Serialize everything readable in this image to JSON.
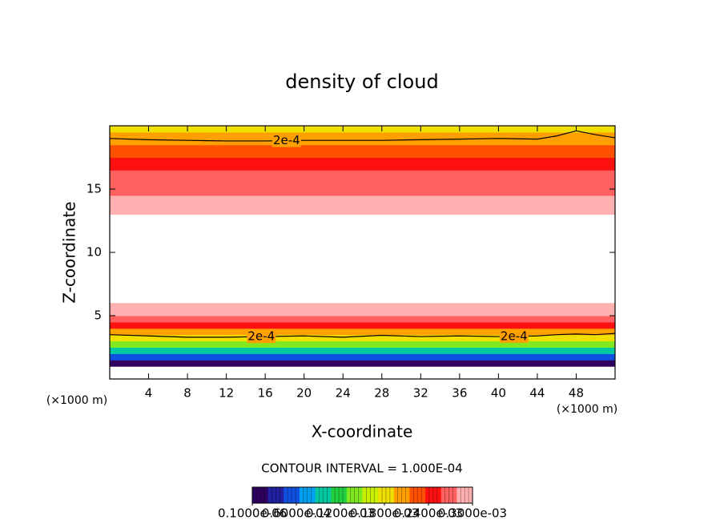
{
  "chart_data": {
    "type": "contour",
    "title": "density of cloud",
    "xlabel": "X-coordinate",
    "ylabel": "Z-coordinate",
    "x_unit": "(×1000 m)",
    "y_unit": "(×1000 m)",
    "xlim": [
      0,
      52
    ],
    "ylim": [
      0,
      20
    ],
    "xticks": [
      4,
      8,
      12,
      16,
      20,
      24,
      28,
      32,
      36,
      40,
      44,
      48
    ],
    "yticks": [
      5,
      10,
      15
    ],
    "profile": {
      "z": [
        0.25,
        0.75,
        1.25,
        1.75,
        2.25,
        2.75,
        3.25,
        3.75,
        4.25,
        4.75,
        5.25,
        5.75,
        6.25,
        6.75,
        7.25,
        7.75,
        8.25,
        8.75,
        9.25,
        9.75,
        10.25,
        10.75,
        11.25,
        11.75,
        12.25,
        12.75,
        13.25,
        13.75,
        14.25,
        14.75,
        15.25,
        15.75,
        16.25,
        16.75,
        17.25,
        17.75,
        18.25,
        18.75,
        19.25,
        19.75
      ],
      "values": [
        null,
        null,
        2e-05,
        5e-05,
        9e-05,
        0.00014,
        0.00018,
        0.00021,
        0.00024,
        0.00027,
        0.00029,
        0.0003,
        null,
        null,
        null,
        null,
        null,
        null,
        null,
        null,
        null,
        null,
        null,
        null,
        null,
        null,
        0.0003,
        0.00029,
        0.00028,
        0.000275,
        0.000275,
        0.00027,
        0.00026,
        0.00025,
        0.00024,
        0.00023,
        0.00022,
        0.00021,
        0.0002,
        0.00019
      ]
    },
    "contours": [
      {
        "label": "2e-4",
        "color": "#000000",
        "x": [
          0,
          4,
          8,
          12,
          16,
          20,
          24,
          28,
          32,
          36,
          40,
          44,
          46,
          48,
          50,
          52
        ],
        "z": [
          19.0,
          18.9,
          18.85,
          18.8,
          18.8,
          18.85,
          18.85,
          18.85,
          18.9,
          18.95,
          19.0,
          18.95,
          19.2,
          19.6,
          19.3,
          19.05
        ]
      },
      {
        "label": "2e-4",
        "color": "#000000",
        "x": [
          0,
          4,
          8,
          12,
          16,
          20,
          24,
          28,
          32,
          36,
          40,
          44,
          46,
          48,
          50,
          52
        ],
        "z": [
          3.5,
          3.4,
          3.3,
          3.3,
          3.35,
          3.4,
          3.3,
          3.45,
          3.35,
          3.4,
          3.35,
          3.4,
          3.5,
          3.55,
          3.5,
          3.6
        ]
      }
    ],
    "contour_interval": "CONTOUR INTERVAL = 1.000E-04",
    "colorbar": {
      "clim": [
        0,
        0.0003
      ],
      "colors": [
        "#300060",
        "#2020a0",
        "#1050e0",
        "#00a0f0",
        "#00c8a0",
        "#20d040",
        "#80e820",
        "#c8f000",
        "#f0e000",
        "#ffa000",
        "#ff5000",
        "#ff1010",
        "#ff6060",
        "#ffb0b0"
      ],
      "ticks": [
        {
          "value": 1e-07,
          "label": "0.1000e-06"
        },
        {
          "value": 6e-05,
          "label": "0.6000e-04"
        },
        {
          "value": 0.00012,
          "label": "0.1200e-03"
        },
        {
          "value": 0.00018,
          "label": "0.1800e-03"
        },
        {
          "value": 0.00024,
          "label": "0.2400e-03"
        },
        {
          "value": 0.0003,
          "label": "0.3000e-03"
        }
      ]
    }
  }
}
